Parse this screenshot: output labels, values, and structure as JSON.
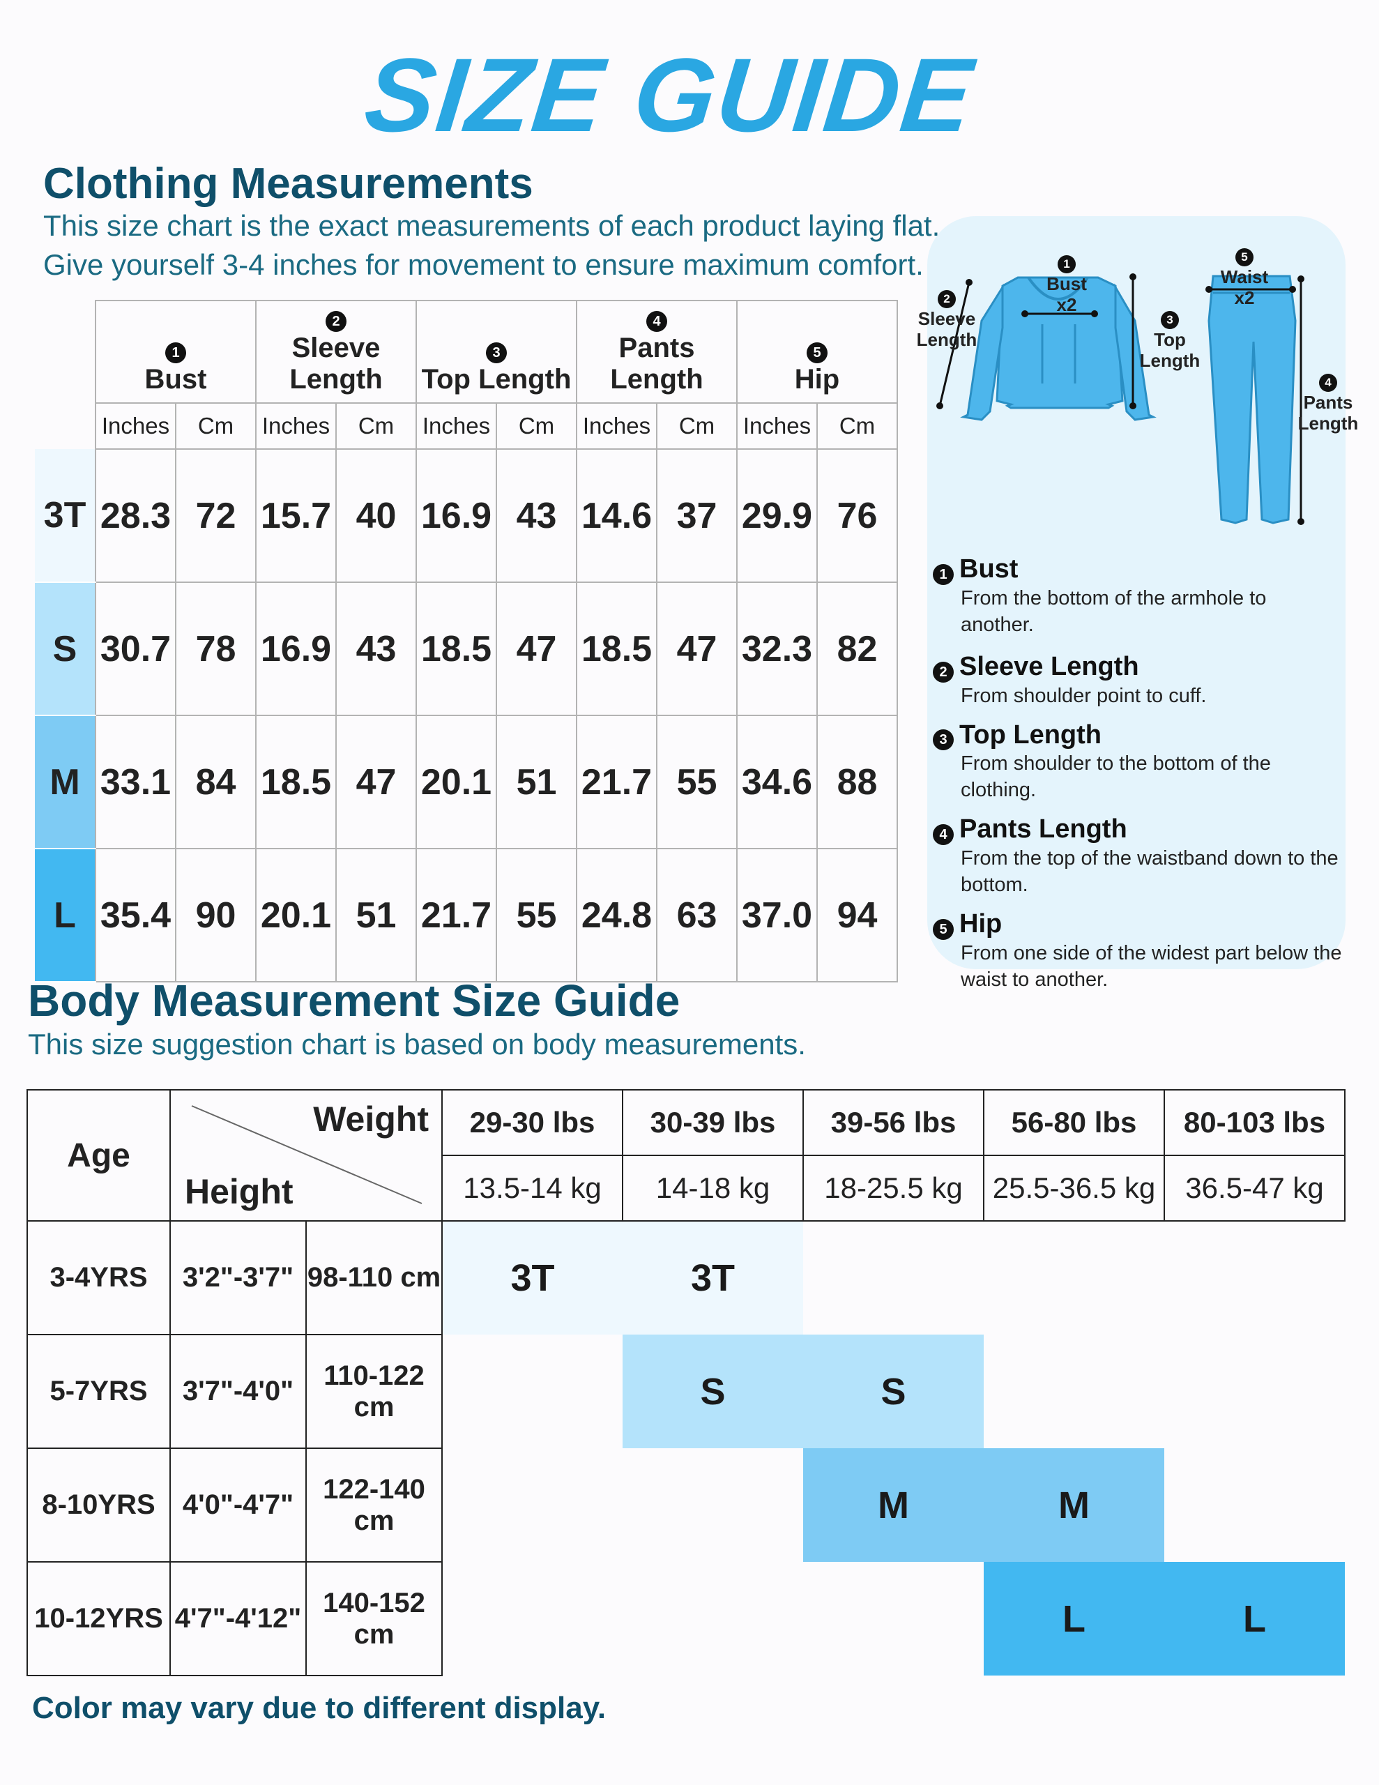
{
  "page": {
    "title": "SIZE GUIDE",
    "footer": "Color may vary due to different display."
  },
  "clothing": {
    "heading": "Clothing Measurements",
    "line1": "This size chart is the exact measurements of each product laying flat.",
    "line2": "Give yourself 3-4 inches for movement to ensure maximum comfort.",
    "columns": [
      {
        "num": "1",
        "label": "Bust"
      },
      {
        "num": "2",
        "label": "Sleeve Length"
      },
      {
        "num": "3",
        "label": "Top Length"
      },
      {
        "num": "4",
        "label": "Pants Length"
      },
      {
        "num": "5",
        "label": "Hip"
      }
    ],
    "unit_in": "Inches",
    "unit_cm": "Cm",
    "rows": [
      {
        "size": "3T",
        "values": [
          "28.3",
          "72",
          "15.7",
          "40",
          "16.9",
          "43",
          "14.6",
          "37",
          "29.9",
          "76"
        ]
      },
      {
        "size": "S",
        "values": [
          "30.7",
          "78",
          "16.9",
          "43",
          "18.5",
          "47",
          "18.5",
          "47",
          "32.3",
          "82"
        ]
      },
      {
        "size": "M",
        "values": [
          "33.1",
          "84",
          "18.5",
          "47",
          "20.1",
          "51",
          "21.7",
          "55",
          "34.6",
          "88"
        ]
      },
      {
        "size": "L",
        "values": [
          "35.4",
          "90",
          "20.1",
          "51",
          "21.7",
          "55",
          "24.8",
          "63",
          "37.0",
          "94"
        ]
      }
    ]
  },
  "diagram": {
    "labels": {
      "bust": "Bust",
      "bust_x2": "x2",
      "waist": "Waist",
      "waist_x2": "x2",
      "sleeve1": "Sleeve",
      "sleeve2": "Length",
      "top1": "Top",
      "top2": "Length",
      "pants1": "Pants",
      "pants2": "Length"
    },
    "definitions": [
      {
        "num": "1",
        "title": "Bust",
        "lines": [
          "From the bottom of the armhole to another."
        ]
      },
      {
        "num": "2",
        "title": "Sleeve Length",
        "lines": [
          "From shoulder point to cuff."
        ]
      },
      {
        "num": "3",
        "title": "Top Length",
        "lines": [
          "From shoulder to the bottom of the clothing."
        ]
      },
      {
        "num": "4",
        "title": "Pants Length",
        "lines": [
          "From the top of the waistband down to the",
          "bottom."
        ]
      },
      {
        "num": "5",
        "title": "Hip",
        "lines": [
          "From one side of the widest part below the",
          "waist to another."
        ]
      }
    ]
  },
  "body": {
    "heading": "Body Measurement Size Guide",
    "subheading": "This size suggestion chart is based on body measurements.",
    "age_label": "Age",
    "weight_label": "Weight",
    "height_label": "Height",
    "weights_lbs": [
      "29-30 lbs",
      "30-39 lbs",
      "39-56 lbs",
      "56-80 lbs",
      "80-103 lbs"
    ],
    "weights_kg": [
      "13.5-14 kg",
      "14-18 kg",
      "18-25.5 kg",
      "25.5-36.5 kg",
      "36.5-47 kg"
    ],
    "rows": [
      {
        "age": "3-4YRS",
        "height_ft": "3'2\"-3'7\"",
        "height_cm": "98-110 cm",
        "sizes": [
          "3T",
          "3T"
        ]
      },
      {
        "age": "5-7YRS",
        "height_ft": "3'7\"-4'0\"",
        "height_cm": "110-122 cm",
        "sizes": [
          "S",
          "S"
        ]
      },
      {
        "age": "8-10YRS",
        "height_ft": "4'0\"-4'7\"",
        "height_cm": "122-140 cm",
        "sizes": [
          "M",
          "M"
        ]
      },
      {
        "age": "10-12YRS",
        "height_ft": "4'7\"-4'12\"",
        "height_cm": "140-152 cm",
        "sizes": [
          "L",
          "L"
        ]
      }
    ]
  },
  "colors": {
    "title": "#2aa7e2",
    "heading": "#0f4f6a",
    "size_3t": "#eef8fe",
    "size_s": "#b4e3fb",
    "size_m": "#7ecbf4",
    "size_l": "#42b8f1",
    "garment": "#4db6ec"
  }
}
